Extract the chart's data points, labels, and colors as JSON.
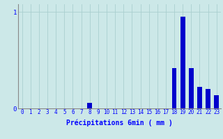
{
  "xlabel": "Précipitations 6min ( mm )",
  "background_color": "#cce8e8",
  "bar_color": "#0000cc",
  "xlim": [
    -0.5,
    23.5
  ],
  "ylim": [
    0,
    1.08
  ],
  "yticks": [
    0,
    1
  ],
  "xticks": [
    0,
    1,
    2,
    3,
    4,
    5,
    6,
    7,
    8,
    9,
    10,
    11,
    12,
    13,
    14,
    15,
    16,
    17,
    18,
    19,
    20,
    21,
    22,
    23
  ],
  "grid_color": "#aad0d0",
  "values": [
    0,
    0,
    0,
    0,
    0,
    0,
    0,
    0,
    0.06,
    0,
    0,
    0,
    0,
    0,
    0,
    0,
    0,
    0,
    0.42,
    0.95,
    0.42,
    0.22,
    0.2,
    0.14
  ],
  "bar_width": 0.55
}
